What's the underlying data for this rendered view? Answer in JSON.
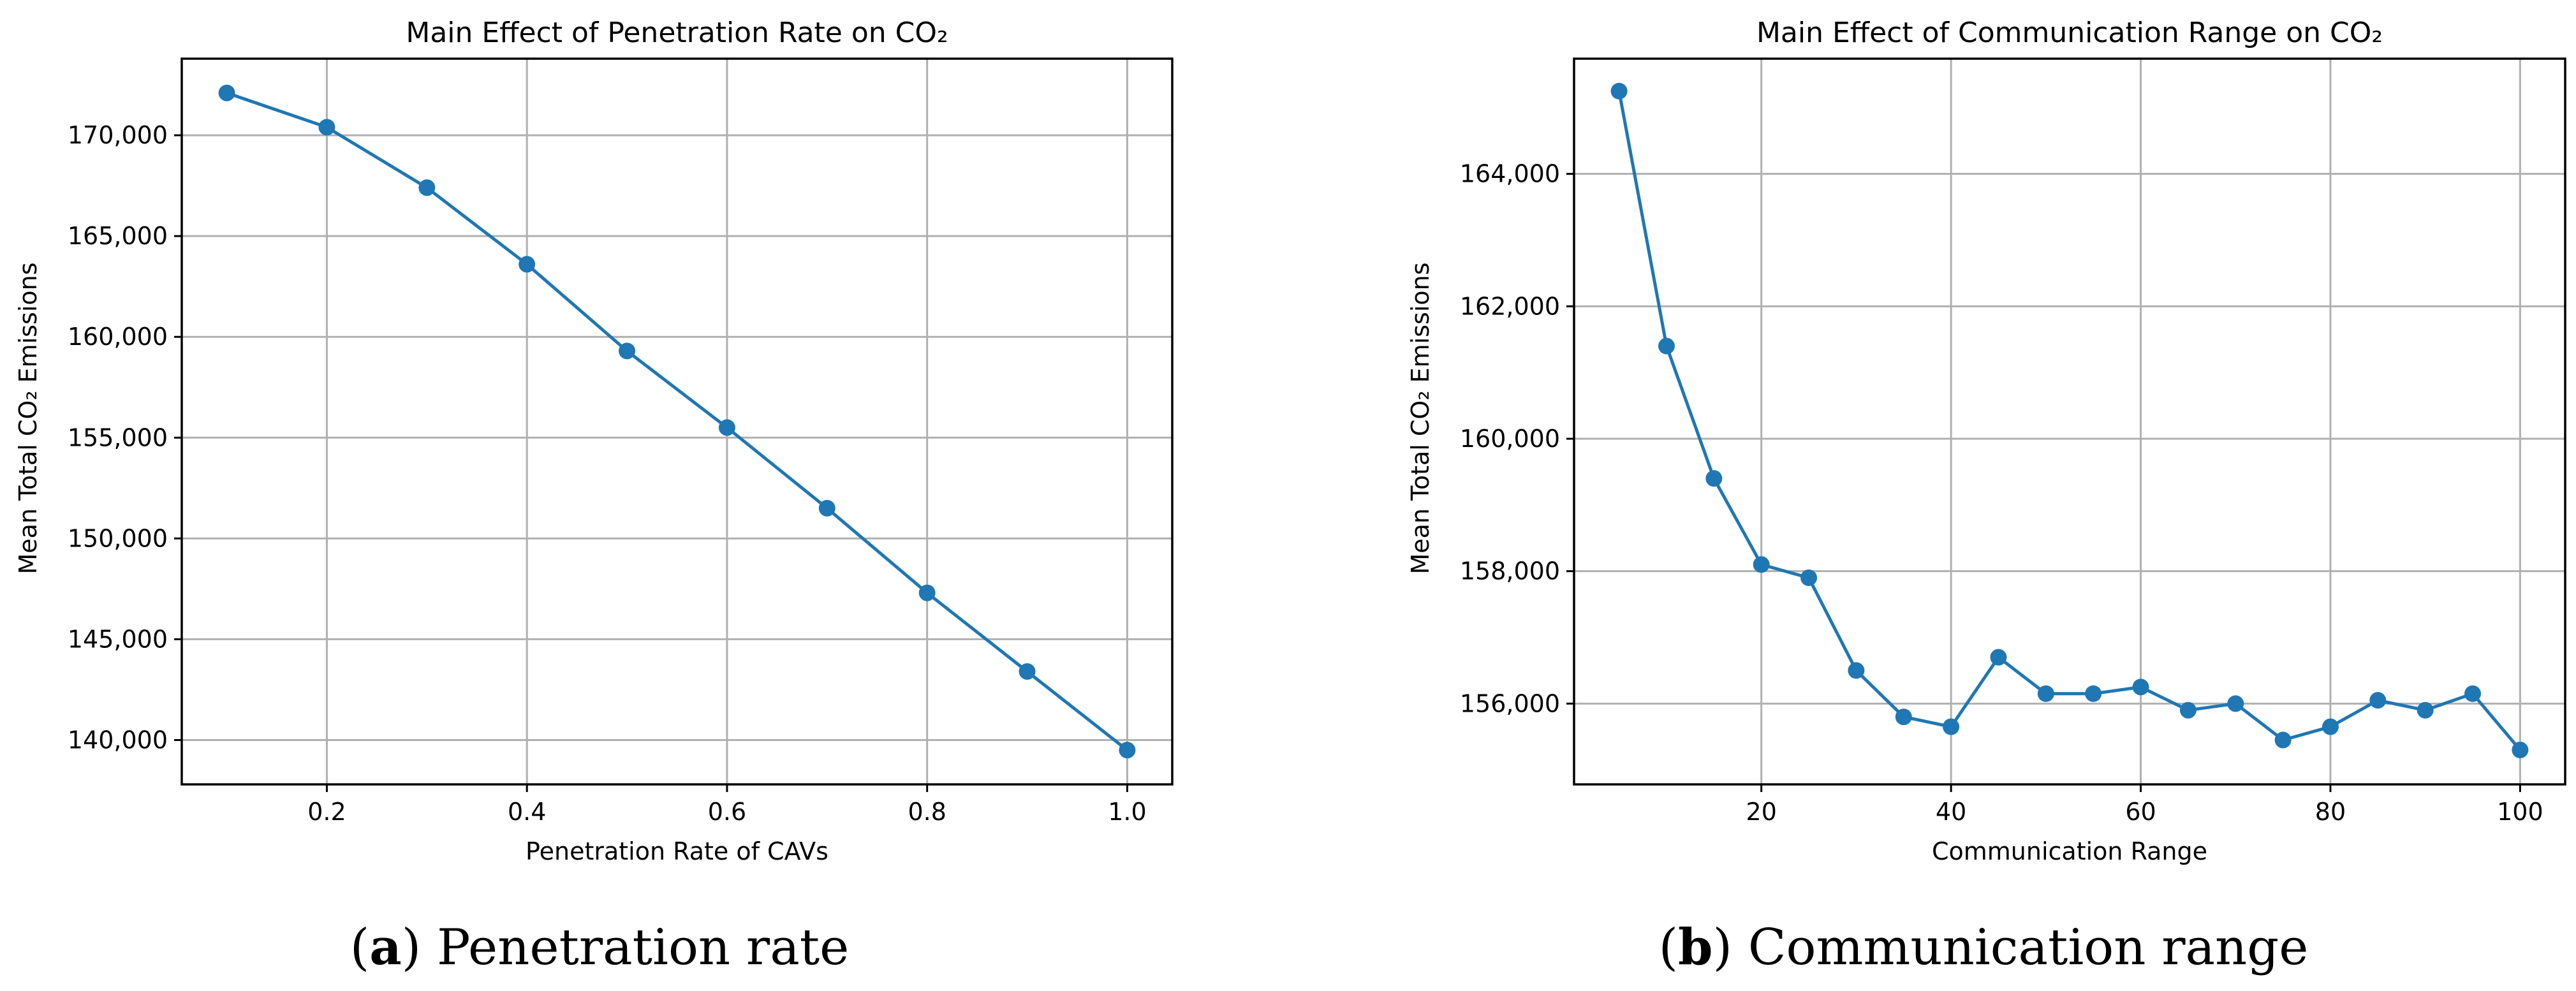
{
  "chart_data": [
    {
      "type": "line",
      "title": "Main Effect of Penetration Rate on CO₂",
      "xlabel": "Penetration Rate of CAVs",
      "ylabel": "Mean Total CO₂ Emissions",
      "x": [
        0.1,
        0.2,
        0.3,
        0.4,
        0.5,
        0.6,
        0.7,
        0.8,
        0.9,
        1.0
      ],
      "values": [
        172100,
        170400,
        167400,
        163600,
        159300,
        155500,
        151500,
        147300,
        143400,
        139500
      ],
      "xlim": [
        0.055,
        1.045
      ],
      "ylim": [
        137800,
        173800
      ],
      "xticks": [
        0.2,
        0.4,
        0.6,
        0.8,
        1.0
      ],
      "xtick_labels": [
        "0.2",
        "0.4",
        "0.6",
        "0.8",
        "1.0"
      ],
      "yticks": [
        140000,
        145000,
        150000,
        155000,
        160000,
        165000,
        170000
      ],
      "ytick_labels": [
        "140,000",
        "145,000",
        "150,000",
        "155,000",
        "160,000",
        "165,000",
        "170,000"
      ],
      "grid": true,
      "color": "#1f77b4",
      "caption_letter": "a",
      "caption_text": "Penetration rate"
    },
    {
      "type": "line",
      "title": "Main Effect of Communication Range on CO₂",
      "xlabel": "Communication Range",
      "ylabel": "Mean Total CO₂ Emissions",
      "x": [
        5,
        10,
        15,
        20,
        25,
        30,
        35,
        40,
        45,
        50,
        55,
        60,
        65,
        70,
        75,
        80,
        85,
        90,
        95,
        100
      ],
      "values": [
        165250,
        161400,
        159400,
        158100,
        157900,
        156500,
        155800,
        155650,
        156700,
        156150,
        156150,
        156250,
        155900,
        156000,
        155450,
        155650,
        156050,
        155900,
        156150,
        155300
      ],
      "xlim": [
        0.25,
        104.75
      ],
      "ylim": [
        154780,
        165740
      ],
      "xticks": [
        20,
        40,
        60,
        80,
        100
      ],
      "xtick_labels": [
        "20",
        "40",
        "60",
        "80",
        "100"
      ],
      "yticks": [
        156000,
        158000,
        160000,
        162000,
        164000
      ],
      "ytick_labels": [
        "156,000",
        "158,000",
        "160,000",
        "162,000",
        "164,000"
      ],
      "grid": true,
      "color": "#1f77b4",
      "caption_letter": "b",
      "caption_text": "Communication range"
    }
  ]
}
